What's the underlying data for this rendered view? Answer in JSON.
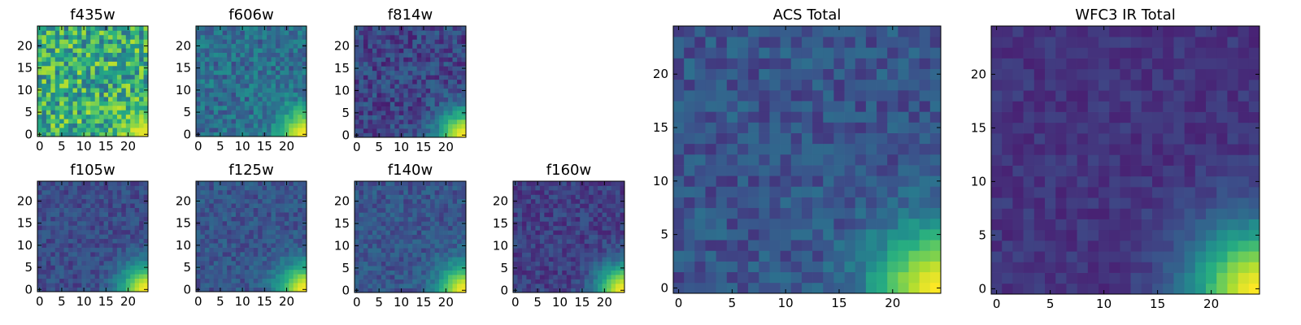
{
  "colors": {
    "colormap": "viridis",
    "frame": "#000000",
    "background": "#ffffff"
  },
  "chart_data": [
    {
      "type": "heatmap",
      "title": "f435w",
      "grid_shape": [
        25,
        25
      ],
      "x_ticks": [
        0,
        5,
        10,
        15,
        20
      ],
      "y_ticks": [
        0,
        5,
        10,
        15,
        20
      ],
      "xlim": [
        -0.5,
        24.5
      ],
      "ylim": [
        -0.5,
        24.5
      ],
      "grid": false,
      "origin": "lower",
      "values_summary": "Noisy background at high relative level with brightest values (yellow) toward the lower-right corner; scattered dark pixels.",
      "background_level": 0.62,
      "noise_level": 0.28,
      "peak_level": 0.97
    },
    {
      "type": "heatmap",
      "title": "f606w",
      "grid_shape": [
        25,
        25
      ],
      "x_ticks": [
        0,
        5,
        10,
        15,
        20
      ],
      "y_ticks": [
        0,
        5,
        10,
        15,
        20
      ],
      "xlim": [
        -0.5,
        24.5
      ],
      "ylim": [
        -0.5,
        24.5
      ],
      "grid": false,
      "origin": "lower",
      "values_summary": "Teal/blue noisy background with a bright yellow source in the lower-right corner.",
      "background_level": 0.36,
      "noise_level": 0.14,
      "peak_level": 1.0
    },
    {
      "type": "heatmap",
      "title": "f814w",
      "grid_shape": [
        25,
        25
      ],
      "x_ticks": [
        0,
        5,
        10,
        15,
        20
      ],
      "y_ticks": [
        0,
        5,
        10,
        15,
        20
      ],
      "xlim": [
        -0.5,
        24.5
      ],
      "ylim": [
        -0.5,
        24.5
      ],
      "grid": false,
      "origin": "lower",
      "values_summary": "Dark purple/blue noisy background with a bright yellow source in the lower-right corner.",
      "background_level": 0.22,
      "noise_level": 0.12,
      "peak_level": 1.0
    },
    {
      "type": "heatmap",
      "title": "f105w",
      "grid_shape": [
        25,
        25
      ],
      "x_ticks": [
        0,
        5,
        10,
        15,
        20
      ],
      "y_ticks": [
        0,
        5,
        10,
        15,
        20
      ],
      "xlim": [
        -0.5,
        24.5
      ],
      "ylim": [
        -0.5,
        24.5
      ],
      "grid": false,
      "origin": "lower",
      "values_summary": "Smoother purple/blue background with a bright yellow source in the lower-right corner.",
      "background_level": 0.24,
      "noise_level": 0.08,
      "peak_level": 1.0
    },
    {
      "type": "heatmap",
      "title": "f125w",
      "grid_shape": [
        25,
        25
      ],
      "x_ticks": [
        0,
        5,
        10,
        15,
        20
      ],
      "y_ticks": [
        0,
        5,
        10,
        15,
        20
      ],
      "xlim": [
        -0.5,
        24.5
      ],
      "ylim": [
        -0.5,
        24.5
      ],
      "grid": false,
      "origin": "lower",
      "values_summary": "Blue-teal background with a bright yellow source in the lower-right corner.",
      "background_level": 0.27,
      "noise_level": 0.09,
      "peak_level": 1.0
    },
    {
      "type": "heatmap",
      "title": "f140w",
      "grid_shape": [
        25,
        25
      ],
      "x_ticks": [
        0,
        5,
        10,
        15,
        20
      ],
      "y_ticks": [
        0,
        5,
        10,
        15,
        20
      ],
      "xlim": [
        -0.5,
        24.5
      ],
      "ylim": [
        -0.5,
        24.5
      ],
      "grid": false,
      "origin": "lower",
      "values_summary": "Blue background with a bright yellow source in the lower-right corner.",
      "background_level": 0.27,
      "noise_level": 0.09,
      "peak_level": 1.0
    },
    {
      "type": "heatmap",
      "title": "f160w",
      "grid_shape": [
        25,
        25
      ],
      "x_ticks": [
        0,
        5,
        10,
        15,
        20
      ],
      "y_ticks": [
        0,
        5,
        10,
        15,
        20
      ],
      "xlim": [
        -0.5,
        24.5
      ],
      "ylim": [
        -0.5,
        24.5
      ],
      "grid": false,
      "origin": "lower",
      "values_summary": "Dark purple background with a bright yellow source in the lower-right corner.",
      "background_level": 0.2,
      "noise_level": 0.08,
      "peak_level": 1.0
    },
    {
      "type": "heatmap",
      "title": "ACS Total",
      "grid_shape": [
        25,
        25
      ],
      "x_ticks": [
        0,
        5,
        10,
        15,
        20
      ],
      "y_ticks": [
        0,
        5,
        10,
        15,
        20
      ],
      "xlim": [
        -0.5,
        24.5
      ],
      "ylim": [
        -0.5,
        24.5
      ],
      "grid": false,
      "origin": "lower",
      "values_summary": "Blue/purple pixelated background; source rises from green to yellow toward the lower-right corner.",
      "background_level": 0.27,
      "noise_level": 0.1,
      "peak_level": 1.0
    },
    {
      "type": "heatmap",
      "title": "WFC3 IR Total",
      "grid_shape": [
        25,
        25
      ],
      "x_ticks": [
        0,
        5,
        10,
        15,
        20
      ],
      "y_ticks": [
        0,
        5,
        10,
        15,
        20
      ],
      "xlim": [
        -0.5,
        24.5
      ],
      "ylim": [
        -0.5,
        24.5
      ],
      "grid": false,
      "origin": "lower",
      "values_summary": "Smooth purple background; source rises from teal to yellow toward the lower-right corner.",
      "background_level": 0.17,
      "noise_level": 0.05,
      "peak_level": 1.0
    }
  ]
}
